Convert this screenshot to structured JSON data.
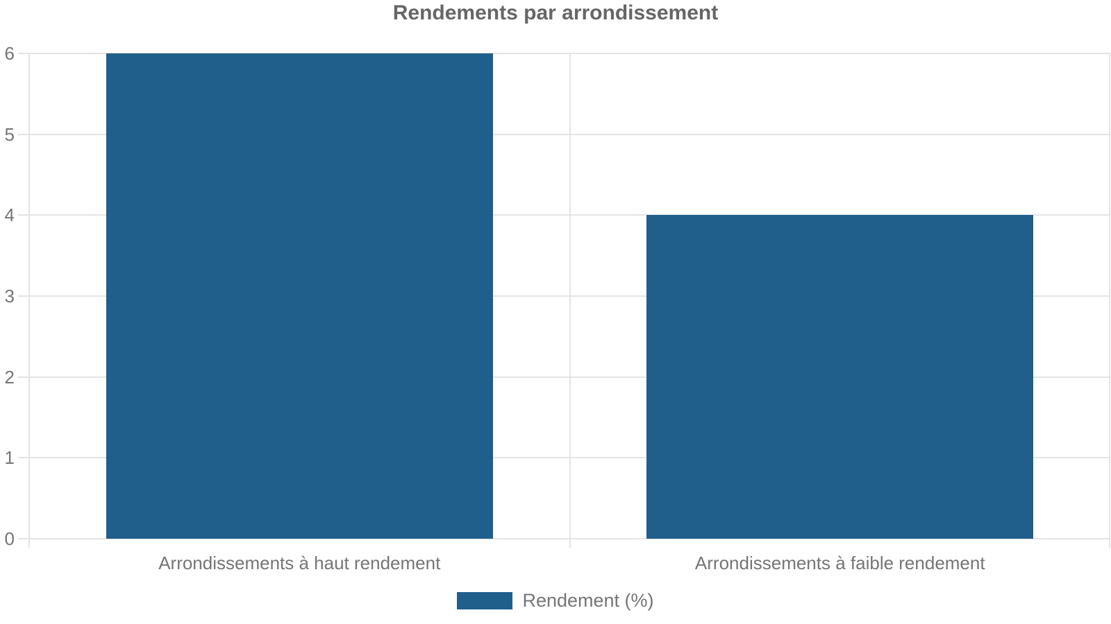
{
  "chart_data": {
    "type": "bar",
    "title": "Rendements par arrondissement",
    "categories": [
      "Arrondissements à haut rendement",
      "Arrondissements à faible rendement"
    ],
    "series": [
      {
        "name": "Rendement (%)",
        "values": [
          6,
          4
        ]
      }
    ],
    "xlabel": "",
    "ylabel": "",
    "ylim": [
      0,
      6
    ],
    "yticks": [
      0,
      1,
      2,
      3,
      4,
      5,
      6
    ],
    "grid": true,
    "legend_position": "bottom",
    "colors": {
      "bar": "#205E8C",
      "title": "#666666",
      "label": "#757575",
      "grid": "#E4E4E4"
    }
  }
}
